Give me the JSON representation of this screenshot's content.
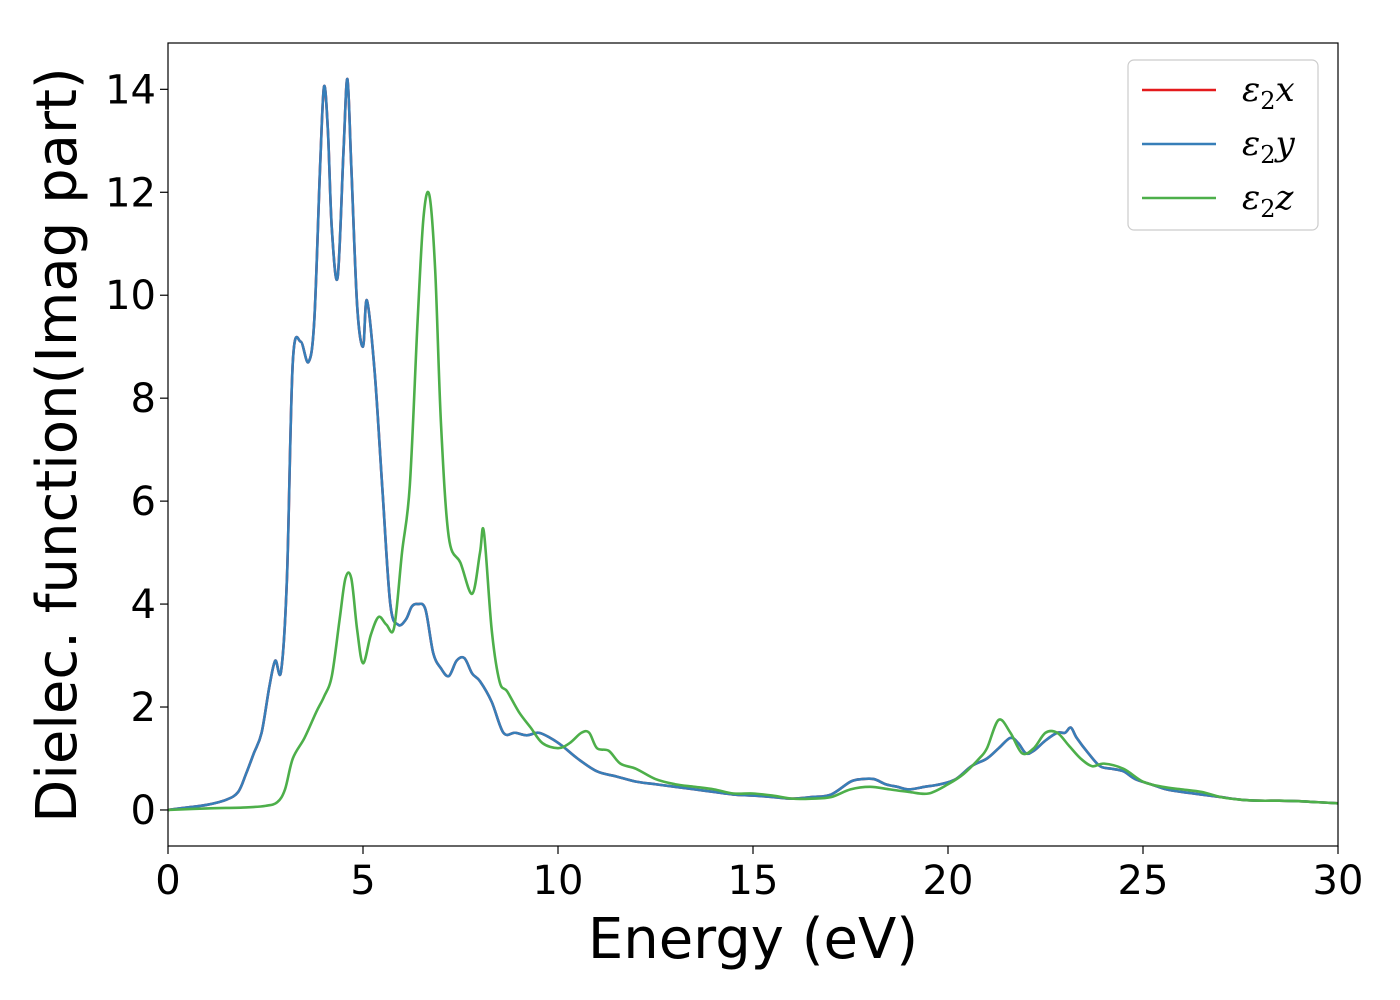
{
  "chart_data": {
    "type": "line",
    "xlabel": "Energy (eV)",
    "ylabel": "Dielec. function(Imag part)",
    "xlim": [
      0,
      30
    ],
    "ylim": [
      -0.7,
      14.9
    ],
    "xticks": [
      0,
      5,
      10,
      15,
      20,
      25,
      30
    ],
    "yticks": [
      0,
      2,
      4,
      6,
      8,
      10,
      12,
      14
    ],
    "grid": false,
    "legend_position": "top-right",
    "series": [
      {
        "name": "ε2x",
        "legend_base": "ε",
        "legend_sub": "2",
        "legend_suffix": "x",
        "color": "#e41a1c",
        "x": [
          0,
          0.5,
          1,
          1.5,
          1.8,
          2,
          2.2,
          2.4,
          2.6,
          2.75,
          2.9,
          3.05,
          3.2,
          3.4,
          3.6,
          3.75,
          3.9,
          4.0,
          4.1,
          4.2,
          4.35,
          4.5,
          4.6,
          4.7,
          4.85,
          5.0,
          5.1,
          5.3,
          5.5,
          5.7,
          5.9,
          6.1,
          6.25,
          6.4,
          6.6,
          6.8,
          7.0,
          7.2,
          7.4,
          7.6,
          7.8,
          8.0,
          8.3,
          8.6,
          8.9,
          9.2,
          9.5,
          9.8,
          10.1,
          10.5,
          11.0,
          11.5,
          12,
          12.5,
          13,
          13.5,
          14,
          14.5,
          15,
          15.5,
          16,
          16.5,
          17,
          17.5,
          17.8,
          18.1,
          18.4,
          18.7,
          19.0,
          19.4,
          19.8,
          20.2,
          20.6,
          21.0,
          21.3,
          21.6,
          21.8,
          22.0,
          22.2,
          22.5,
          22.8,
          23.0,
          23.15,
          23.3,
          23.6,
          23.9,
          24.2,
          24.5,
          24.8,
          25.2,
          25.6,
          26,
          26.5,
          27,
          27.5,
          28,
          28.5,
          29,
          29.5,
          30
        ],
        "values": [
          0,
          0.05,
          0.1,
          0.2,
          0.35,
          0.7,
          1.1,
          1.5,
          2.4,
          2.9,
          2.7,
          4.5,
          8.7,
          9.1,
          8.7,
          9.5,
          12.5,
          14.05,
          13.2,
          11.3,
          10.35,
          12.8,
          14.2,
          12.5,
          9.8,
          9.0,
          9.9,
          8.5,
          6.2,
          4.0,
          3.6,
          3.7,
          3.95,
          4.0,
          3.9,
          3.05,
          2.75,
          2.6,
          2.9,
          2.95,
          2.65,
          2.5,
          2.1,
          1.5,
          1.5,
          1.45,
          1.5,
          1.4,
          1.25,
          1.0,
          0.75,
          0.65,
          0.55,
          0.5,
          0.45,
          0.4,
          0.35,
          0.3,
          0.28,
          0.25,
          0.22,
          0.25,
          0.3,
          0.55,
          0.6,
          0.6,
          0.5,
          0.45,
          0.4,
          0.45,
          0.5,
          0.6,
          0.85,
          1.0,
          1.2,
          1.4,
          1.3,
          1.1,
          1.15,
          1.35,
          1.5,
          1.5,
          1.6,
          1.4,
          1.1,
          0.85,
          0.8,
          0.75,
          0.6,
          0.5,
          0.4,
          0.35,
          0.3,
          0.25,
          0.2,
          0.18,
          0.18,
          0.17,
          0.15,
          0.13
        ]
      },
      {
        "name": "ε2y",
        "legend_base": "ε",
        "legend_sub": "2",
        "legend_suffix": "y",
        "color": "#377eb8",
        "x": [
          0,
          0.5,
          1,
          1.5,
          1.8,
          2,
          2.2,
          2.4,
          2.6,
          2.75,
          2.9,
          3.05,
          3.2,
          3.4,
          3.6,
          3.75,
          3.9,
          4.0,
          4.1,
          4.2,
          4.35,
          4.5,
          4.6,
          4.7,
          4.85,
          5.0,
          5.1,
          5.3,
          5.5,
          5.7,
          5.9,
          6.1,
          6.25,
          6.4,
          6.6,
          6.8,
          7.0,
          7.2,
          7.4,
          7.6,
          7.8,
          8.0,
          8.3,
          8.6,
          8.9,
          9.2,
          9.5,
          9.8,
          10.1,
          10.5,
          11.0,
          11.5,
          12,
          12.5,
          13,
          13.5,
          14,
          14.5,
          15,
          15.5,
          16,
          16.5,
          17,
          17.5,
          17.8,
          18.1,
          18.4,
          18.7,
          19.0,
          19.4,
          19.8,
          20.2,
          20.6,
          21.0,
          21.3,
          21.6,
          21.8,
          22.0,
          22.2,
          22.5,
          22.8,
          23.0,
          23.15,
          23.3,
          23.6,
          23.9,
          24.2,
          24.5,
          24.8,
          25.2,
          25.6,
          26,
          26.5,
          27,
          27.5,
          28,
          28.5,
          29,
          29.5,
          30
        ],
        "values": [
          0,
          0.05,
          0.1,
          0.2,
          0.35,
          0.7,
          1.1,
          1.5,
          2.4,
          2.9,
          2.7,
          4.5,
          8.7,
          9.1,
          8.7,
          9.5,
          12.5,
          14.05,
          13.2,
          11.3,
          10.35,
          12.8,
          14.2,
          12.5,
          9.8,
          9.0,
          9.9,
          8.5,
          6.2,
          4.0,
          3.6,
          3.7,
          3.95,
          4.0,
          3.9,
          3.05,
          2.75,
          2.6,
          2.9,
          2.95,
          2.65,
          2.5,
          2.1,
          1.5,
          1.5,
          1.45,
          1.5,
          1.4,
          1.25,
          1.0,
          0.75,
          0.65,
          0.55,
          0.5,
          0.45,
          0.4,
          0.35,
          0.3,
          0.28,
          0.25,
          0.22,
          0.25,
          0.3,
          0.55,
          0.6,
          0.6,
          0.5,
          0.45,
          0.4,
          0.45,
          0.5,
          0.6,
          0.85,
          1.0,
          1.2,
          1.4,
          1.3,
          1.1,
          1.15,
          1.35,
          1.5,
          1.5,
          1.6,
          1.4,
          1.1,
          0.85,
          0.8,
          0.75,
          0.6,
          0.5,
          0.4,
          0.35,
          0.3,
          0.25,
          0.2,
          0.18,
          0.18,
          0.17,
          0.15,
          0.13
        ]
      },
      {
        "name": "ε2z",
        "legend_base": "ε",
        "legend_sub": "2",
        "legend_suffix": "z",
        "color": "#4daf4a",
        "x": [
          0,
          1,
          2,
          2.5,
          2.8,
          3.0,
          3.2,
          3.5,
          3.8,
          4.0,
          4.2,
          4.4,
          4.55,
          4.7,
          4.85,
          5.0,
          5.2,
          5.4,
          5.6,
          5.8,
          6.0,
          6.2,
          6.4,
          6.55,
          6.7,
          6.85,
          7.0,
          7.2,
          7.5,
          7.8,
          8.0,
          8.1,
          8.3,
          8.5,
          8.7,
          9.0,
          9.3,
          9.6,
          10.0,
          10.3,
          10.6,
          10.8,
          11.0,
          11.3,
          11.6,
          12.0,
          12.5,
          13,
          13.5,
          14,
          14.5,
          15,
          15.5,
          16,
          16.5,
          17,
          17.5,
          18,
          18.5,
          19,
          19.5,
          20,
          20.4,
          20.8,
          21.0,
          21.3,
          21.6,
          21.9,
          22.2,
          22.5,
          22.8,
          23.1,
          23.4,
          23.7,
          24.0,
          24.5,
          25,
          25.5,
          26,
          26.5,
          27,
          27.5,
          28,
          28.5,
          29,
          29.5,
          30
        ],
        "values": [
          0,
          0.03,
          0.05,
          0.08,
          0.15,
          0.4,
          1.0,
          1.4,
          1.9,
          2.2,
          2.6,
          3.7,
          4.5,
          4.5,
          3.5,
          2.85,
          3.4,
          3.75,
          3.6,
          3.55,
          5.0,
          6.3,
          9.5,
          11.5,
          11.95,
          10.5,
          7.5,
          5.3,
          4.8,
          4.2,
          5.0,
          5.4,
          3.5,
          2.5,
          2.3,
          1.9,
          1.6,
          1.3,
          1.2,
          1.3,
          1.5,
          1.5,
          1.2,
          1.15,
          0.9,
          0.8,
          0.6,
          0.5,
          0.45,
          0.4,
          0.32,
          0.32,
          0.28,
          0.22,
          0.22,
          0.25,
          0.4,
          0.45,
          0.4,
          0.35,
          0.32,
          0.5,
          0.7,
          1.0,
          1.2,
          1.75,
          1.5,
          1.1,
          1.2,
          1.5,
          1.5,
          1.25,
          1.0,
          0.85,
          0.9,
          0.8,
          0.55,
          0.45,
          0.4,
          0.35,
          0.25,
          0.2,
          0.18,
          0.18,
          0.17,
          0.15,
          0.13
        ]
      }
    ]
  }
}
